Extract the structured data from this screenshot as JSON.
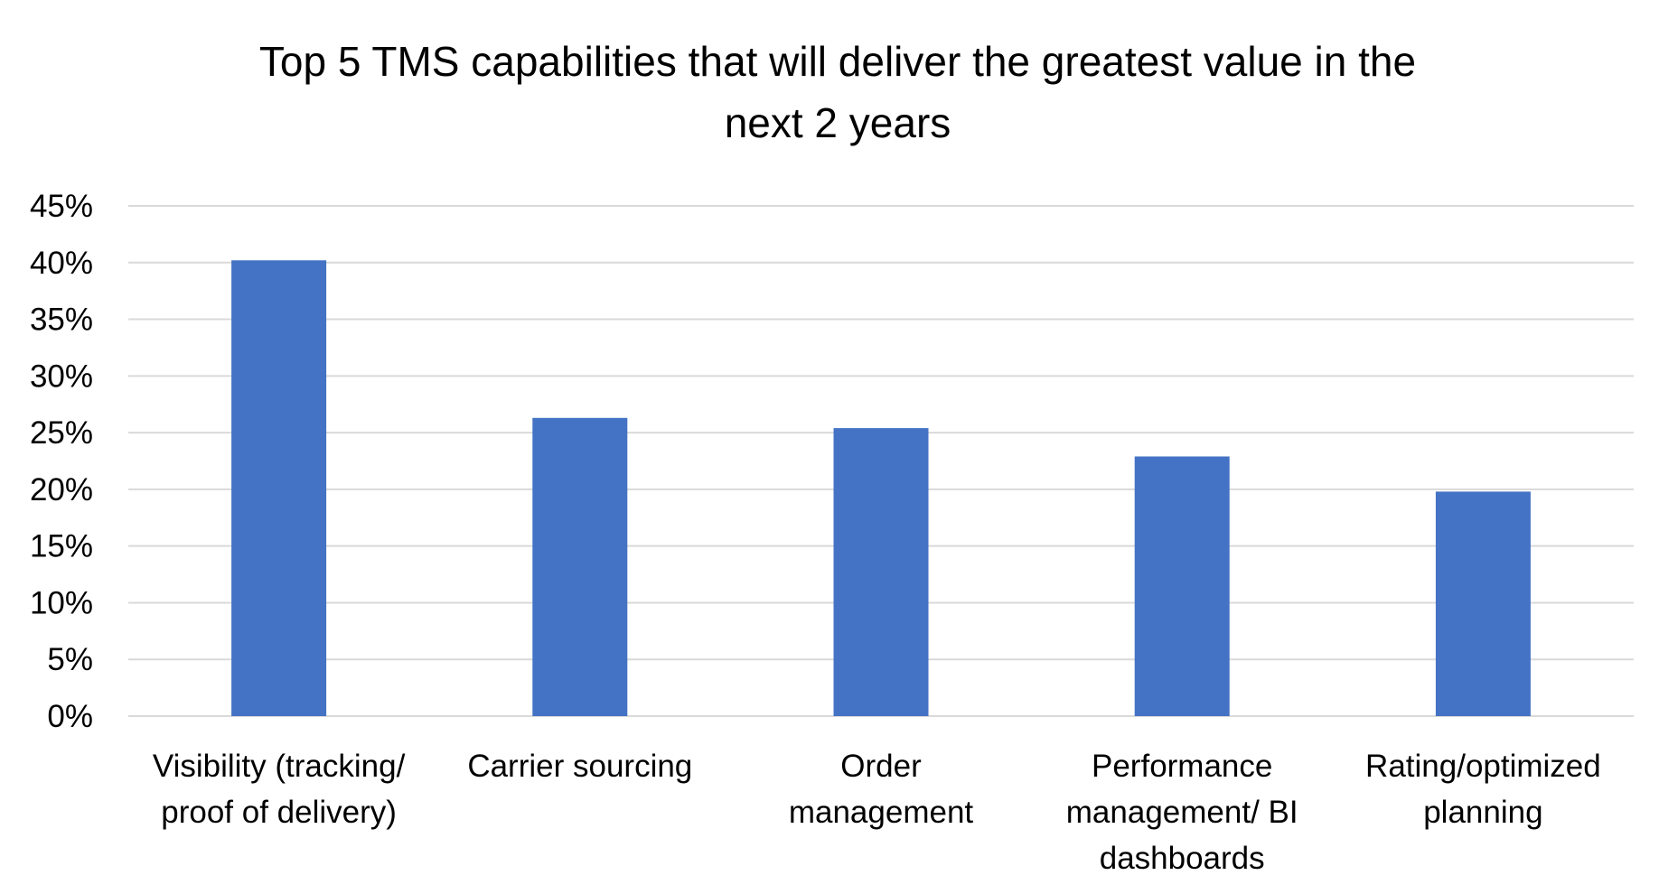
{
  "chart_data": {
    "type": "bar",
    "title_lines": [
      "Top 5 TMS capabilities that will deliver the greatest value in the",
      "next 2 years"
    ],
    "categories": [
      [
        "Visibility (tracking/",
        "proof of delivery)"
      ],
      [
        "Carrier sourcing"
      ],
      [
        "Order",
        "management"
      ],
      [
        "Performance",
        "management/ BI",
        "dashboards"
      ],
      [
        "Rating/optimized",
        "planning"
      ]
    ],
    "values": [
      40.2,
      26.3,
      25.4,
      22.9,
      19.8
    ],
    "ylim": [
      0,
      45
    ],
    "yticks": [
      0,
      5,
      10,
      15,
      20,
      25,
      30,
      35,
      40,
      45
    ],
    "ytick_labels": [
      "0%",
      "5%",
      "10%",
      "15%",
      "20%",
      "25%",
      "30%",
      "35%",
      "40%",
      "45%"
    ],
    "xlabel": "",
    "ylabel": "",
    "grid": true,
    "legend": "none",
    "bar_color": "#4472c4",
    "grid_color": "#d9d9d9"
  }
}
